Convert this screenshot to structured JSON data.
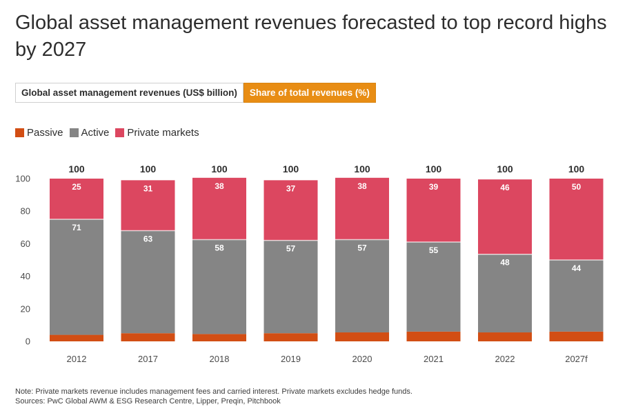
{
  "title": "Global asset management revenues forecasted to top record highs by 2027",
  "tabs": [
    {
      "label": "Global asset management revenues (US$ billion)",
      "active": false
    },
    {
      "label": "Share of total revenues (%)",
      "active": true
    }
  ],
  "colors": {
    "passive": "#d24e14",
    "active": "#858585",
    "private": "#dc4760",
    "tab_active": "#e88d14"
  },
  "notes": {
    "note": "Note: Private markets revenue includes management fees and carried interest. Private markets excludes hedge funds.",
    "sources": "Sources: PwC Global AWM & ESG Research Centre, Lipper, Preqin, Pitchbook"
  },
  "chart_data": {
    "type": "bar",
    "stacked": true,
    "categories": [
      "2012",
      "2017",
      "2018",
      "2019",
      "2020",
      "2021",
      "2022",
      "2027f"
    ],
    "series": [
      {
        "name": "Passive",
        "values": [
          4,
          5,
          4.5,
          5,
          5.5,
          6,
          5.5,
          6
        ]
      },
      {
        "name": "Active",
        "values": [
          71,
          63,
          58,
          57,
          57,
          55,
          48,
          44
        ]
      },
      {
        "name": "Private markets",
        "values": [
          25,
          31,
          38,
          37,
          38,
          39,
          46,
          50
        ]
      }
    ],
    "labeled_series": [
      "Active",
      "Private markets"
    ],
    "totals": [
      100,
      100,
      100,
      100,
      100,
      100,
      100,
      100
    ],
    "ylim": [
      0,
      100
    ],
    "yticks": [
      0,
      20,
      40,
      60,
      80,
      100
    ],
    "legend_position": "top-left",
    "grid": false
  }
}
